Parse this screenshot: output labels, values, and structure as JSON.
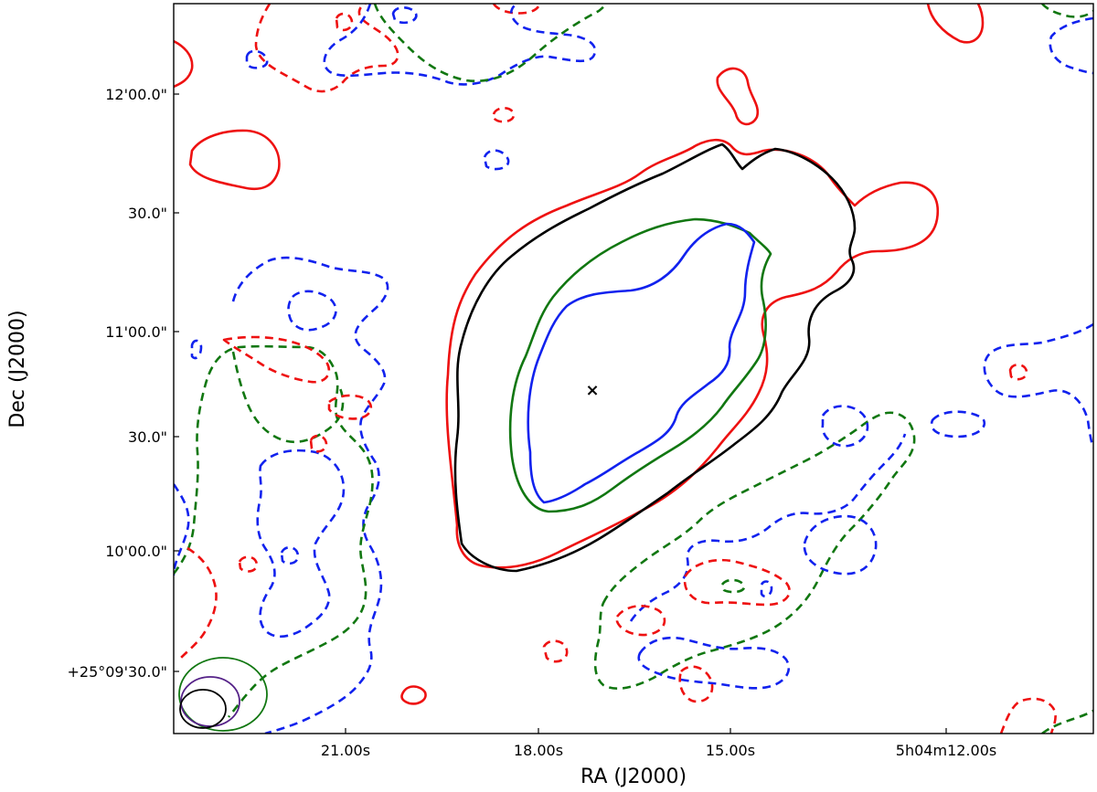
{
  "chart_data": {
    "type": "contour",
    "title": "",
    "xlabel": "RA (J2000)",
    "ylabel": "Dec (J2000)",
    "x_ticks": [
      "21.00s",
      "18.00s",
      "15.00s",
      "5h04m12.00s"
    ],
    "y_ticks": [
      "12'00.0\"",
      "30.0\"",
      "11'00.0\"",
      "30.0\"",
      "10'00.0\"",
      "+25°09'30.0\""
    ],
    "colors": {
      "red": "#ee1111",
      "black": "#000000",
      "green": "#117711",
      "blue": "#1122ee",
      "beam_purple": "#552288"
    },
    "source_marker": {
      "symbol": "×"
    },
    "beams": [
      {
        "color": "green"
      },
      {
        "color": "beam_purple"
      },
      {
        "color": "black"
      }
    ],
    "grid": false,
    "legend": false
  }
}
